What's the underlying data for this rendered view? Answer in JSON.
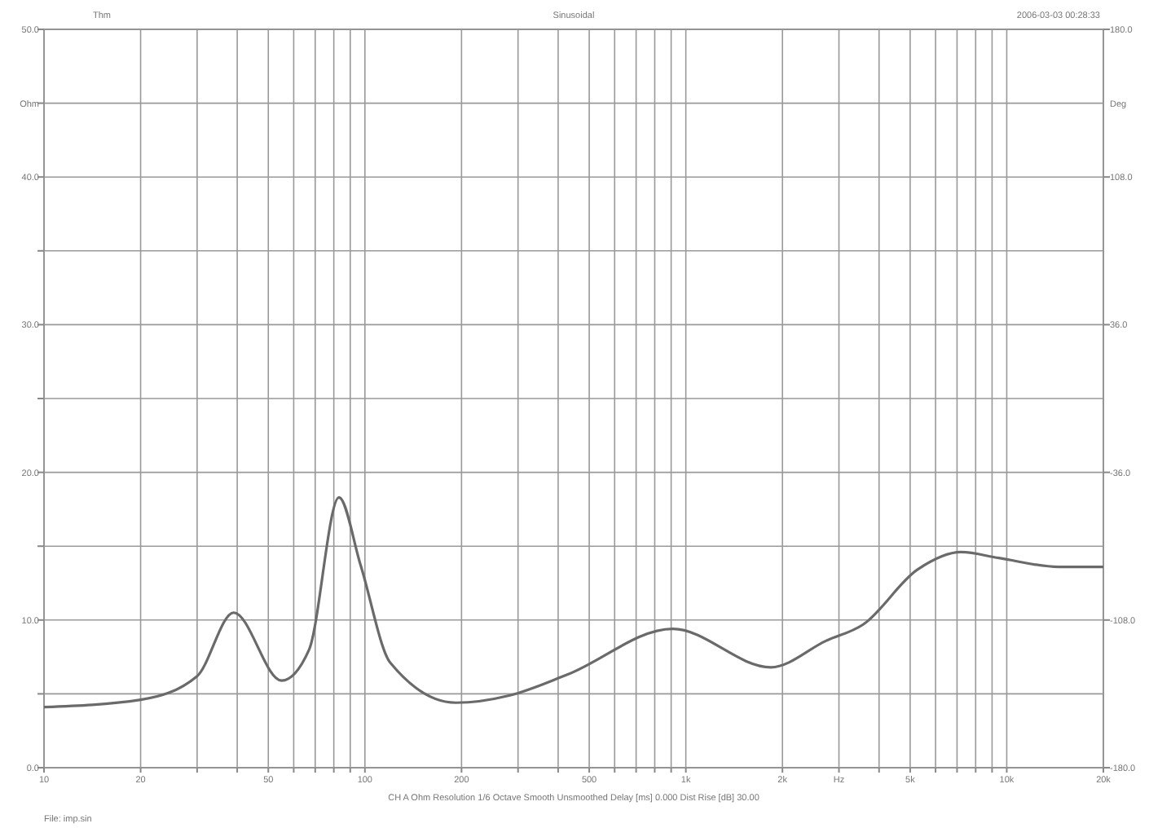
{
  "chart_data": {
    "type": "line",
    "title": "Sinusoidal",
    "xlabel": "Hz",
    "ylabel": "Ohm",
    "y2label": "Deg",
    "annotations": [
      "Thm",
      "2006-03-03 00:28:33",
      "CH A  Ohm  Resolution 1/6 Octave  Smooth Unsmoothed  Delay [ms] 0.000  Dist Rise [dB] 30.00",
      "File: imp.sin"
    ],
    "log": "x",
    "grid": true,
    "marker": "none",
    "line_style": "solid",
    "xlim": [
      10,
      20000
    ],
    "xticks": [
      10,
      20,
      {
        "value": 30,
        "label": null
      },
      {
        "value": 40,
        "label": null
      },
      50,
      {
        "value": 60,
        "label": null
      },
      {
        "value": 70,
        "label": null
      },
      {
        "value": 80,
        "label": null
      },
      {
        "value": 90,
        "label": null
      },
      100,
      200,
      {
        "value": 300,
        "label": null
      },
      {
        "value": 400,
        "label": null
      },
      500,
      {
        "value": 600,
        "label": null
      },
      {
        "value": 700,
        "label": null
      },
      {
        "value": 800,
        "label": null
      },
      {
        "value": 900,
        "label": null
      },
      {
        "value": 1000,
        "label": "1k"
      },
      {
        "value": 2000,
        "label": "2k"
      },
      {
        "value": 3000,
        "label": null
      },
      {
        "value": 4000,
        "label": null
      },
      {
        "value": 5000,
        "label": "5k"
      },
      {
        "value": 6000,
        "label": null
      },
      {
        "value": 7000,
        "label": null
      },
      {
        "value": 8000,
        "label": null
      },
      {
        "value": 9000,
        "label": null
      },
      {
        "value": 10000,
        "label": "10k"
      },
      {
        "value": 20000,
        "label": "20k"
      }
    ],
    "ylim": [
      0,
      50
    ],
    "yticks": [
      {
        "value": 0,
        "label": "0.0"
      },
      {
        "value": 5,
        "label": null
      },
      {
        "value": 10,
        "label": "10.0"
      },
      {
        "value": 15,
        "label": null
      },
      {
        "value": 20,
        "label": "20.0"
      },
      {
        "value": 25,
        "label": null
      },
      {
        "value": 30,
        "label": "30.0"
      },
      {
        "value": 35,
        "label": null
      },
      {
        "value": 40,
        "label": "40.0"
      },
      {
        "value": 45,
        "label": null
      },
      {
        "value": 50,
        "label": "50.0"
      }
    ],
    "y2lim": [
      -180,
      180
    ],
    "y2ticks": [
      {
        "value": 180,
        "label": "180.0"
      },
      {
        "value": 108,
        "label": "108.0"
      },
      {
        "value": 36,
        "label": "36.0"
      },
      {
        "value": -36,
        "label": "-36.0"
      },
      {
        "value": -108,
        "label": "-108.0"
      },
      {
        "value": -180,
        "label": "-180.0"
      }
    ],
    "series": [
      {
        "color": "#6a6a6a",
        "x": [
          10,
          20,
          30,
          39,
          55,
          67,
          83,
          97,
          120,
          192,
          283,
          427,
          910,
          1840,
          2740,
          3570,
          5260,
          7210,
          9440,
          14500,
          20000
        ],
        "values": [
          4.1,
          4.6,
          6.2,
          10.5,
          5.9,
          8.0,
          18.3,
          13.7,
          7.1,
          4.4,
          4.9,
          6.3,
          9.4,
          6.8,
          8.6,
          9.7,
          13.4,
          14.6,
          14.2,
          13.6,
          13.6
        ]
      }
    ]
  }
}
